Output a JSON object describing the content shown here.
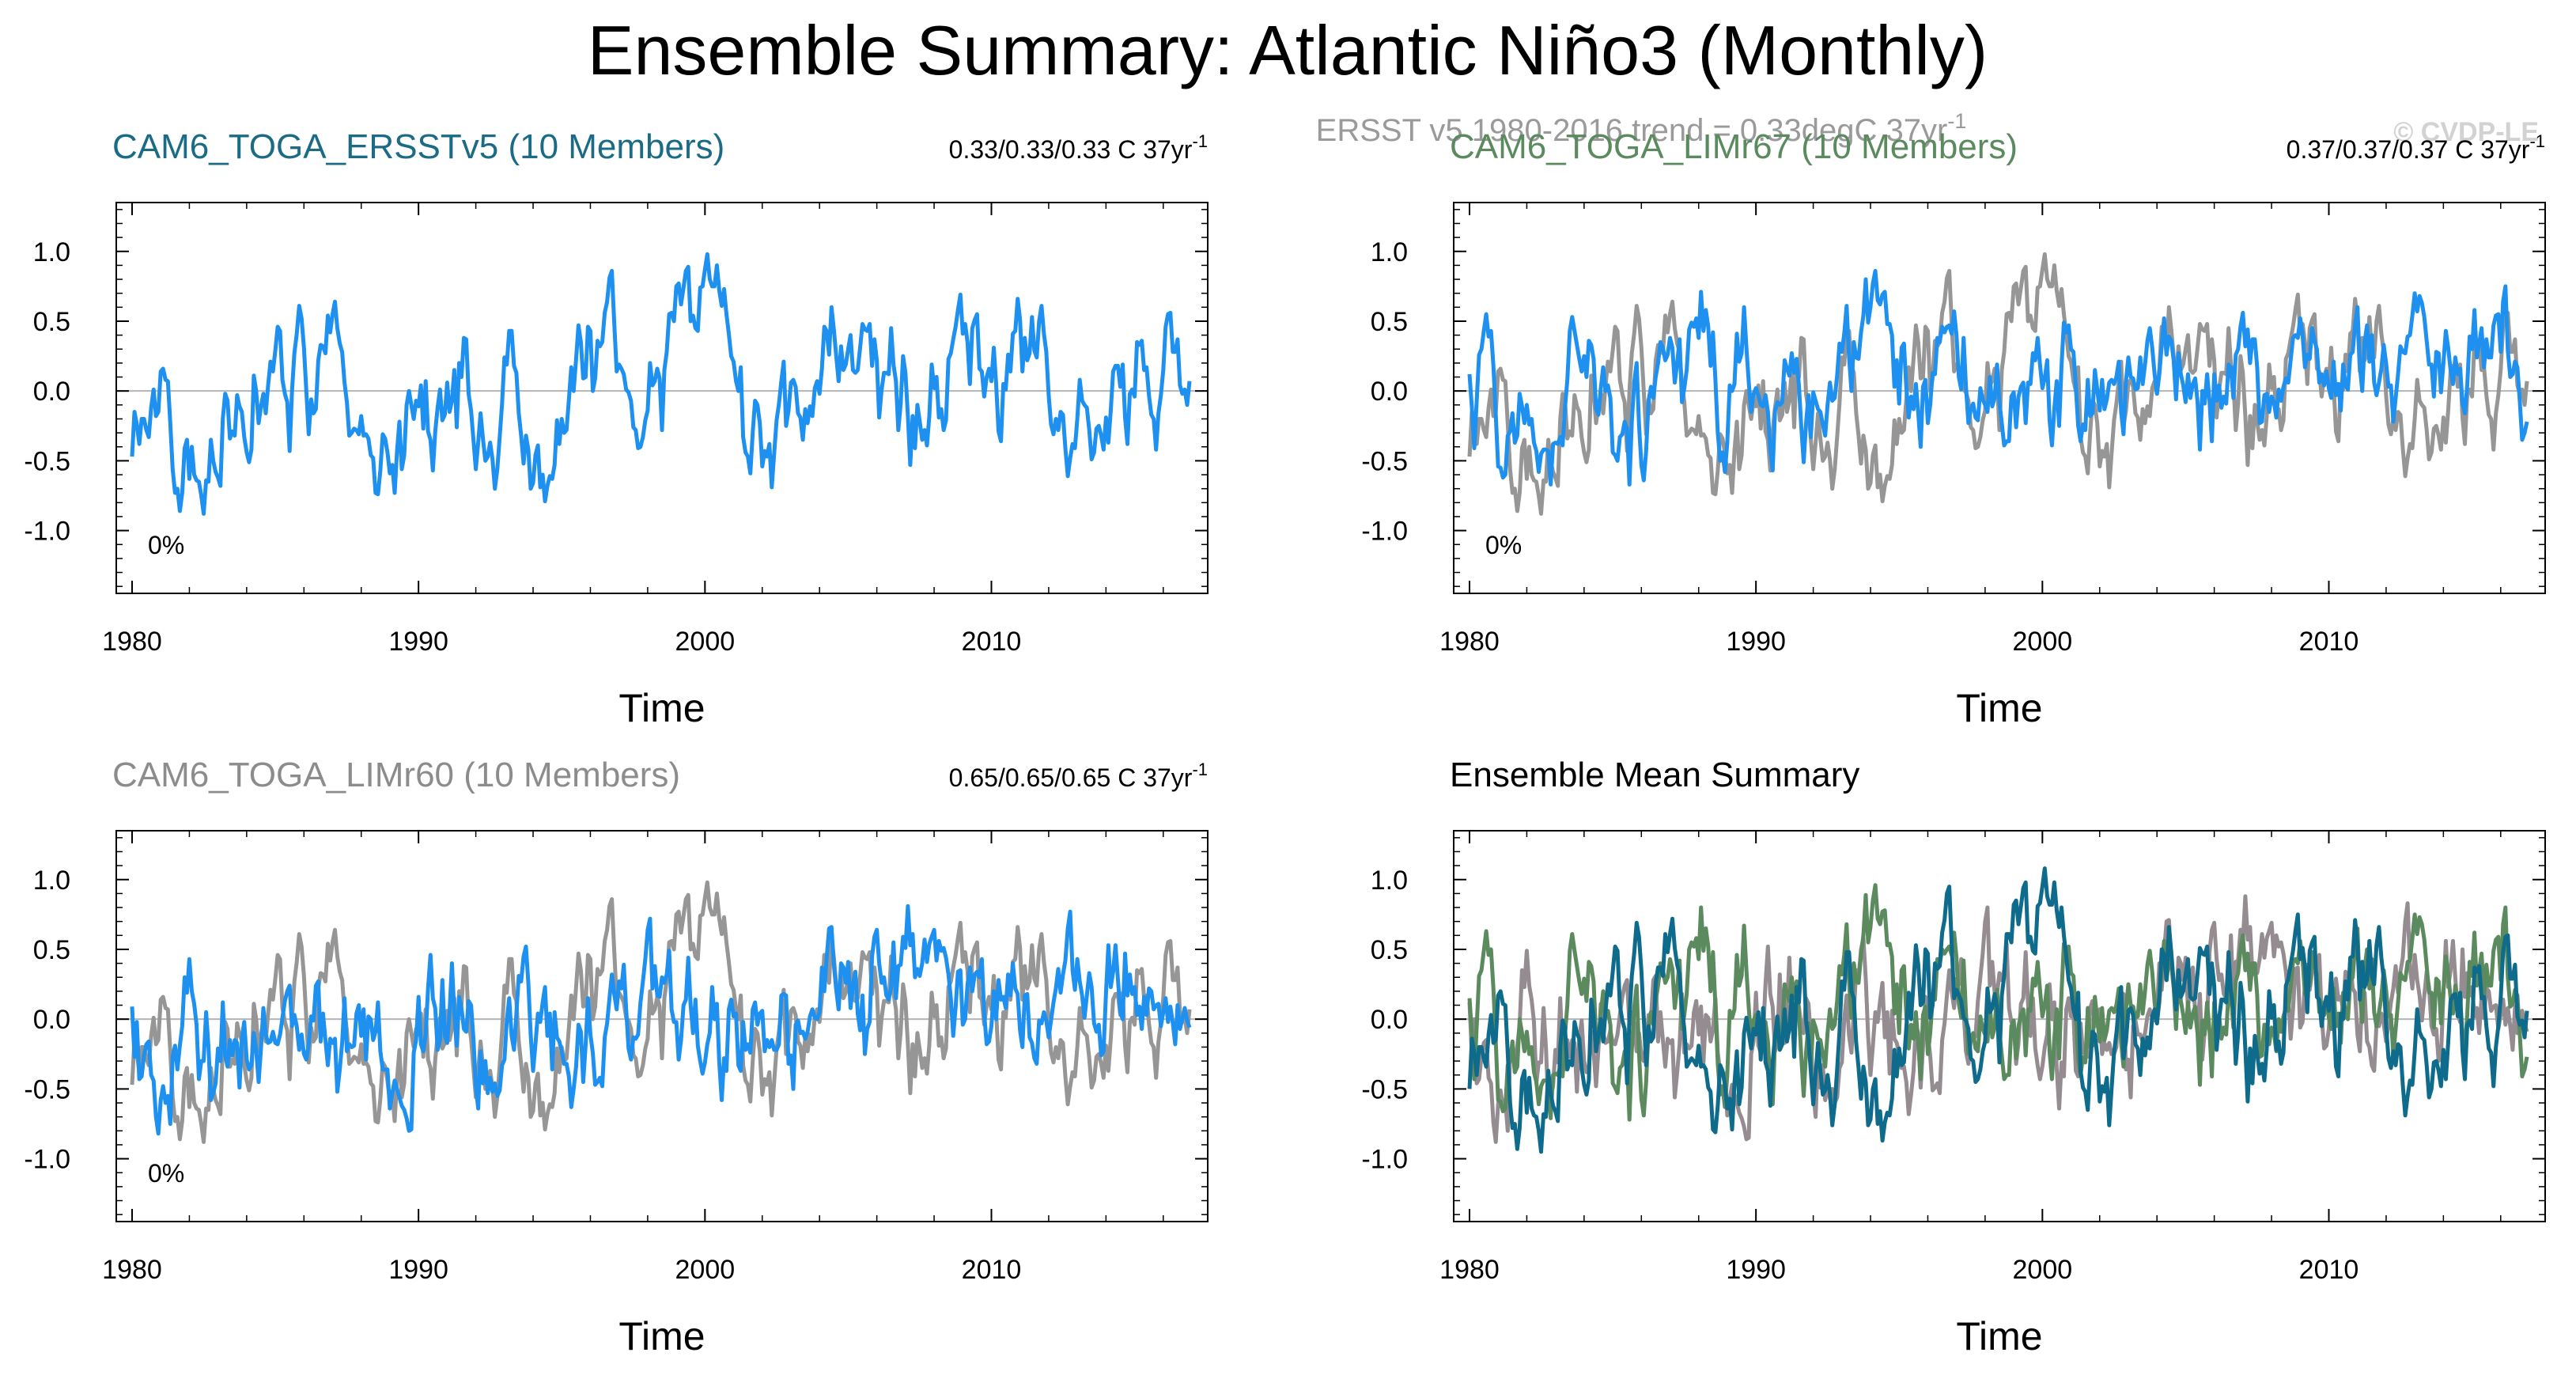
{
  "figure": {
    "title": "Ensemble Summary: Atlantic Niño3 (Monthly)",
    "obs_trend_text": "ERSST v5 1980-2016 trend = 0.33degC 37yr",
    "obs_trend_sup": "-1",
    "copyright": "© CVDP-LE"
  },
  "colors": {
    "obs": "#969696",
    "ersst_member": "#1e90f0",
    "ersst_title": "#1b6b86",
    "limr67_title": "#5a8a5e",
    "limr60_title": "#8c8c8c",
    "mean_ersst": "#0e6b8c",
    "mean_limr67": "#5a8a5e",
    "mean_limr60": "#948c90",
    "axis": "#000000",
    "zero_line": "#b4b4b4"
  },
  "chart_data": [
    {
      "id": "ersstv5",
      "type": "line",
      "title": "CAM6_TOGA_ERSSTv5 (10 Members)",
      "trend_text": "0.33/0.33/0.33 C 37yr",
      "trend_sup": "-1",
      "percent_label": "0%",
      "xlabel": "Time",
      "ylabel": "",
      "xlim": [
        1980,
        2017
      ],
      "ylim": [
        -1.45,
        1.35
      ],
      "xticks": [
        "1980",
        "1990",
        "2000",
        "2010"
      ],
      "yticks": [
        "1.0",
        "0.5",
        "0.0",
        "-0.5",
        "-1.0"
      ],
      "series": [
        {
          "name": "CAM6_TOGA_ERSSTv5",
          "role": "member",
          "seed": 11
        }
      ]
    },
    {
      "id": "limr67",
      "type": "line",
      "title": "CAM6_TOGA_LIMr67 (10 Members)",
      "trend_text": "0.37/0.37/0.37 C 37yr",
      "trend_sup": "-1",
      "percent_label": "0%",
      "xlabel": "Time",
      "ylabel": "",
      "xlim": [
        1980,
        2017
      ],
      "ylim": [
        -1.45,
        1.35
      ],
      "xticks": [
        "1980",
        "1990",
        "2000",
        "2010"
      ],
      "yticks": [
        "1.0",
        "0.5",
        "0.0",
        "-0.5",
        "-1.0"
      ],
      "series": [
        {
          "name": "ERSST v5",
          "role": "obs",
          "seed": 11
        },
        {
          "name": "CAM6_TOGA_LIMr67",
          "role": "member",
          "seed": 23
        }
      ]
    },
    {
      "id": "limr60",
      "type": "line",
      "title": "CAM6_TOGA_LIMr60 (10 Members)",
      "trend_text": "0.65/0.65/0.65 C 37yr",
      "trend_sup": "-1",
      "percent_label": "0%",
      "xlabel": "Time",
      "ylabel": "",
      "xlim": [
        1980,
        2017
      ],
      "ylim": [
        -1.45,
        1.35
      ],
      "xticks": [
        "1980",
        "1990",
        "2000",
        "2010"
      ],
      "yticks": [
        "1.0",
        "0.5",
        "0.0",
        "-0.5",
        "-1.0"
      ],
      "series": [
        {
          "name": "ERSST v5",
          "role": "obs",
          "seed": 11
        },
        {
          "name": "CAM6_TOGA_LIMr60",
          "role": "member",
          "seed": 37
        }
      ]
    },
    {
      "id": "ensmean",
      "type": "line",
      "title": "Ensemble Mean Summary",
      "trend_text": "",
      "trend_sup": "",
      "percent_label": "",
      "xlabel": "Time",
      "ylabel": "",
      "xlim": [
        1980,
        2017
      ],
      "ylim": [
        -1.45,
        1.35
      ],
      "xticks": [
        "1980",
        "1990",
        "2000",
        "2010"
      ],
      "yticks": [
        "1.0",
        "0.5",
        "0.0",
        "-0.5",
        "-1.0"
      ],
      "series": [
        {
          "name": "CAM6_TOGA_LIMr60",
          "role": "mean60",
          "seed": 37
        },
        {
          "name": "CAM6_TOGA_LIMr67",
          "role": "mean67",
          "seed": 23
        },
        {
          "name": "CAM6_TOGA_ERSSTv5",
          "role": "meanE",
          "seed": 11
        }
      ]
    }
  ]
}
